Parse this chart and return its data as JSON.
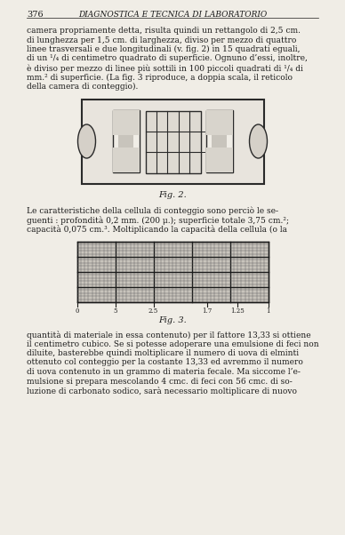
{
  "page_number": "376",
  "header_title": "DIAGNOSTICA E TECNICA DI LABORATORIO",
  "bg_color": "#f0ede6",
  "text_color": "#1a1a1a",
  "para1": "camera propriamente detta, risulta quindi un rettangolo di 2,5 cm.\ndi lunghezza per 1,5 cm. di larghezza, diviso per mezzo di quattro\nlinee trasversali e due longitudinali (v. fig. 2) in 15 quadrati eguali,\ndi un ¹/₄ di centimetro quadrato di superficie. Ognuno d’essi, inoltre,\nè diviso per mezzo di linee più sottili in 100 piccoli quadrati di ¹/₄ di\nmm.² di superficie. (La fig. 3 riproduce, a doppia scala, il reticolo\ndella camera di conteggio).",
  "fig2_caption": "Fig. 2.",
  "fig3_caption": "Fig. 3.",
  "para2": "Le caratteristiche della cellula di conteggio sono perciò le se-\nguenti : profondità 0,2 mm. (200 μ.); superficie totale 3,75 cm.²;\ncapacità 0,075 cm.³. Moltiplicando la capacità della cellula (o la",
  "para3": "quantità di materiale in essa contenuto) per il fattore 13,33 si ottiene\nil centimetro cubico. Se si potesse adoperare una emulsione di feci non\ndiluite, basterebbe quindi moltiplicare il numero di uova di elminti\nottenuto col conteggio per la costante 13,33 ed avremmo il numero\ndi uova contenuto in un grammo di materia fecale. Ma siccome l’e-\nmulsione si prepara mescolando 4 cmc. di feci con 56 cmc. di so-\nluzione di carbonato sodico, sarà necessario moltiplicare di nuovo",
  "grid_tick_labels": [
    "0",
    "5",
    "2.5",
    "1.7",
    "1.25",
    "1"
  ]
}
